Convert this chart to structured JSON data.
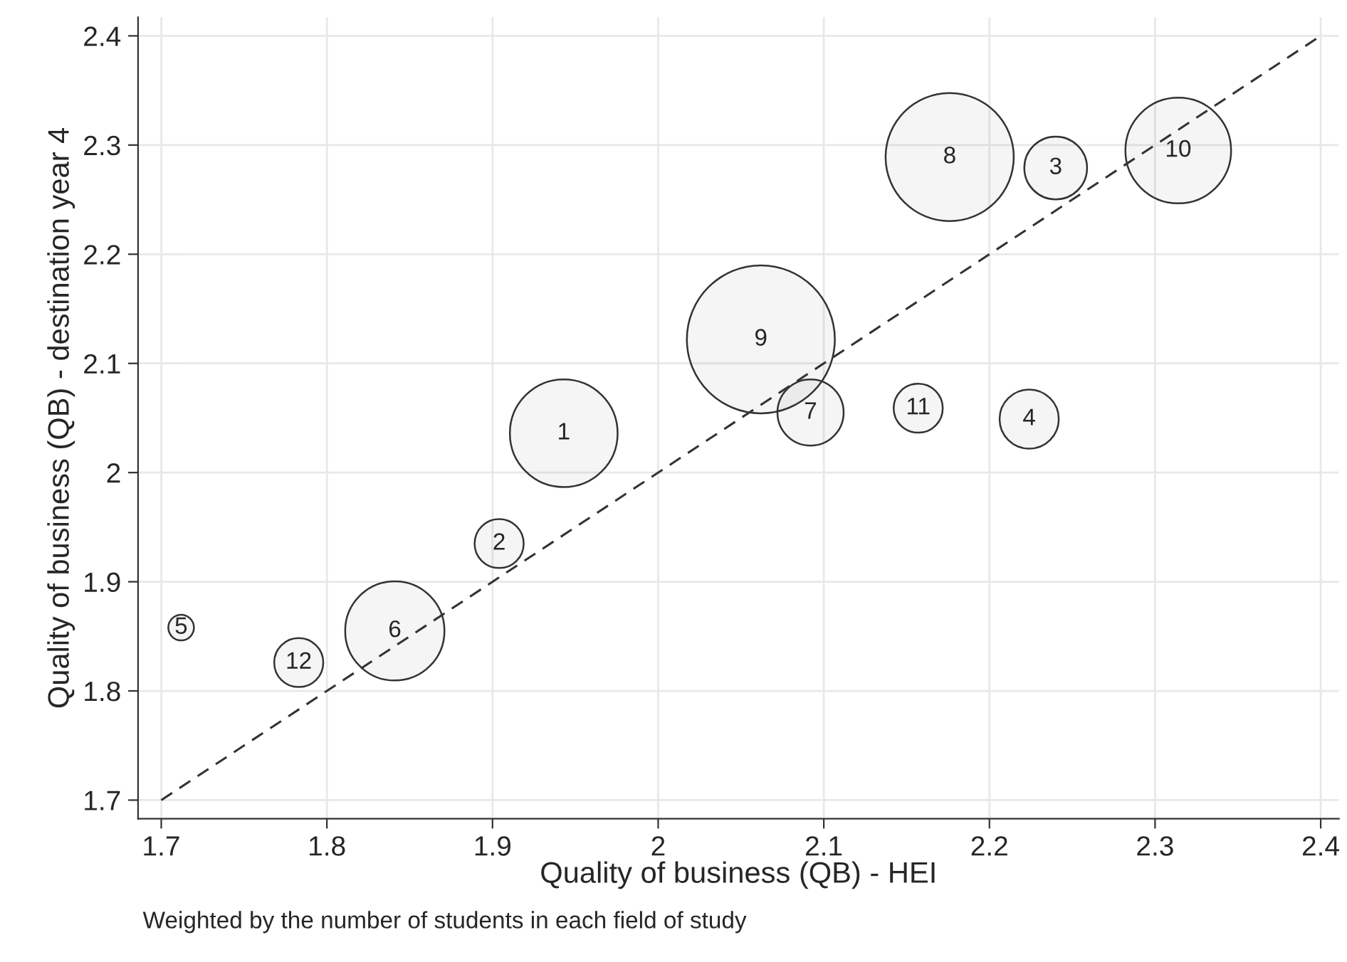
{
  "chart_data": {
    "type": "bubble",
    "xlabel": "Quality of business (QB) - HEI",
    "ylabel": "Quality of business (QB) - destination year 4",
    "xlim": [
      1.686,
      2.411
    ],
    "ylim": [
      1.683,
      2.417
    ],
    "xticks": [
      1.7,
      1.8,
      1.9,
      2,
      2.1,
      2.2,
      2.3,
      2.4
    ],
    "yticks": [
      1.7,
      1.8,
      1.9,
      2,
      2.1,
      2.2,
      2.3,
      2.4
    ],
    "grid": true,
    "legend": false,
    "series": [
      {
        "color": "#333333",
        "x": [
          1.943,
          1.904,
          2.24,
          2.224,
          1.712,
          1.841,
          2.092,
          2.176,
          2.062,
          2.314,
          2.157,
          1.783
        ],
        "values": [
          2.036,
          1.935,
          2.279,
          2.049,
          1.858,
          1.855,
          2.055,
          2.289,
          2.122,
          2.295,
          2.059,
          1.826
        ],
        "sizes": [
          0.53,
          0.11,
          0.18,
          0.16,
          0.03,
          0.45,
          0.2,
          0.75,
          1.0,
          0.51,
          0.11,
          0.11
        ]
      },
      {
        "type": "line",
        "color": "#333333",
        "line_style": "dashed",
        "x": [
          1.7,
          2.4
        ],
        "values": [
          1.7,
          2.4
        ]
      }
    ],
    "annotations": [
      {
        "text": "1",
        "x": 1.943,
        "y": 2.036
      },
      {
        "text": "2",
        "x": 1.904,
        "y": 1.935
      },
      {
        "text": "3",
        "x": 2.24,
        "y": 2.279
      },
      {
        "text": "4",
        "x": 2.224,
        "y": 2.049
      },
      {
        "text": "5",
        "x": 1.712,
        "y": 1.858
      },
      {
        "text": "6",
        "x": 1.841,
        "y": 1.855
      },
      {
        "text": "7",
        "x": 2.092,
        "y": 2.055
      },
      {
        "text": "8",
        "x": 2.176,
        "y": 2.289
      },
      {
        "text": "9",
        "x": 2.062,
        "y": 2.122
      },
      {
        "text": "10",
        "x": 2.314,
        "y": 2.295
      },
      {
        "text": "11",
        "x": 2.157,
        "y": 2.059
      },
      {
        "text": "12",
        "x": 1.783,
        "y": 1.826
      },
      "Weighted by the number of students in each field of study"
    ]
  }
}
